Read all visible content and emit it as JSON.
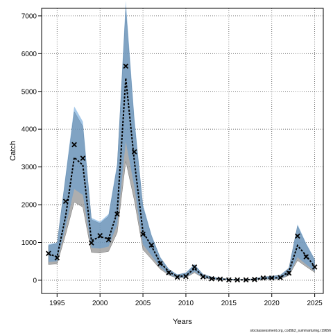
{
  "chart_data": {
    "type": "line",
    "xlabel": "Years",
    "ylabel": "Catch",
    "xlim": [
      1993.2,
      2026.0
    ],
    "ylim": [
      -350,
      7200
    ],
    "xticks": [
      1995,
      2000,
      2005,
      2010,
      2015,
      2020,
      2025
    ],
    "yticks": [
      0,
      1000,
      2000,
      3000,
      4000,
      5000,
      6000,
      7000
    ],
    "grid": true,
    "legend": "none",
    "colors": {
      "band_outer": "#8c8c8c",
      "band_inner": "#5b9bd5",
      "line": "#000000",
      "observed": "#000000"
    },
    "x": [
      1994,
      1995,
      1996,
      1997,
      1998,
      1999,
      2000,
      2001,
      2002,
      2003,
      2004,
      2005,
      2006,
      2007,
      2008,
      2009,
      2010,
      2011,
      2012,
      2013,
      2014,
      2015,
      2016,
      2017,
      2018,
      2019,
      2020,
      2021,
      2022,
      2023,
      2024,
      2025
    ],
    "series": [
      {
        "role": "observed",
        "values": [
          710,
          590,
          2090,
          3590,
          3230,
          990,
          1180,
          1070,
          1750,
          5670,
          3400,
          1220,
          930,
          440,
          200,
          80,
          100,
          350,
          90,
          40,
          30,
          10,
          10,
          10,
          20,
          60,
          60,
          70,
          190,
          1170,
          620,
          350
        ]
      },
      {
        "role": "estimate",
        "values": [
          700,
          620,
          1700,
          3250,
          3050,
          1050,
          1150,
          1100,
          1800,
          5350,
          3150,
          1280,
          900,
          470,
          230,
          100,
          120,
          310,
          110,
          50,
          30,
          15,
          10,
          10,
          20,
          55,
          60,
          70,
          230,
          920,
          650,
          360
        ]
      },
      {
        "role": "upper",
        "values": [
          950,
          1000,
          2800,
          4600,
          4200,
          1650,
          1550,
          1750,
          3100,
          7400,
          4300,
          2000,
          1200,
          620,
          300,
          150,
          200,
          420,
          160,
          90,
          55,
          35,
          25,
          25,
          45,
          90,
          110,
          140,
          330,
          1480,
          980,
          560
        ]
      },
      {
        "role": "lower",
        "values": [
          460,
          480,
          1350,
          2300,
          2150,
          820,
          800,
          850,
          1400,
          3500,
          2350,
          900,
          620,
          330,
          150,
          60,
          80,
          220,
          70,
          30,
          15,
          5,
          3,
          3,
          8,
          30,
          30,
          40,
          140,
          580,
          400,
          230
        ]
      }
    ]
  },
  "watermark": "stockassessment.org, cod5b2_summarturing.r19656"
}
